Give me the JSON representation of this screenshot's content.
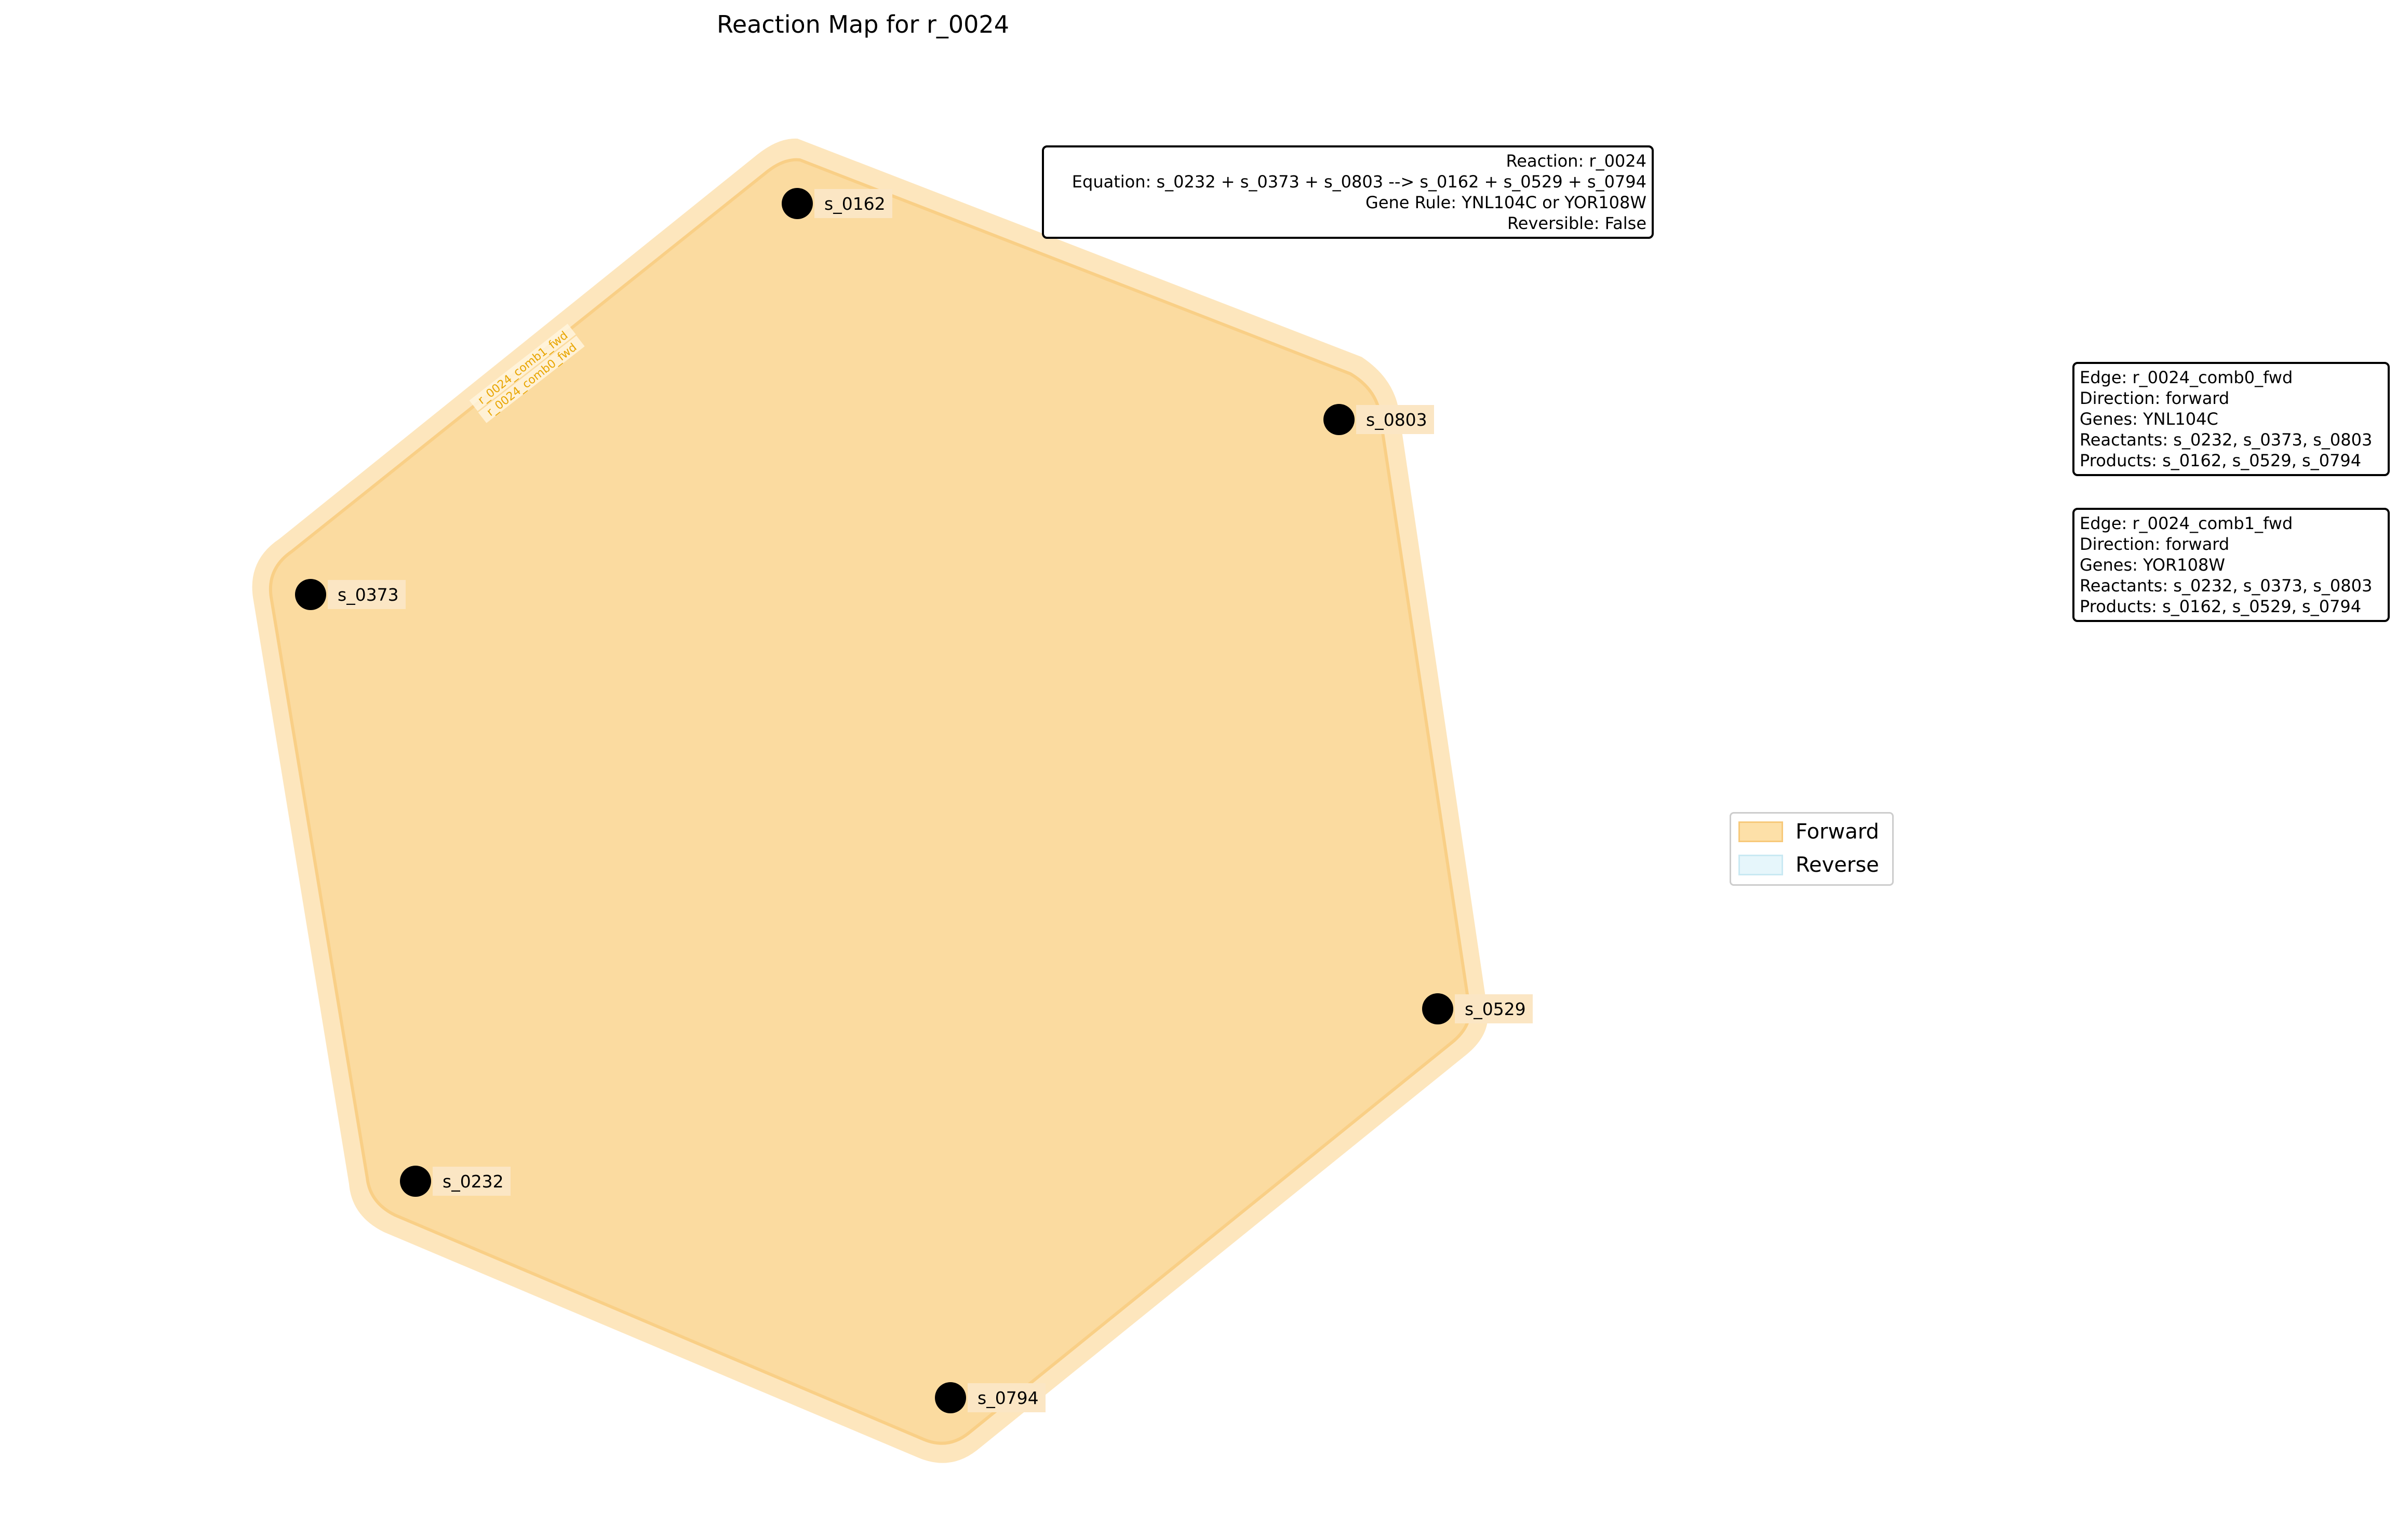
{
  "title": "Reaction Map for r_0024",
  "reaction_info": {
    "lines": [
      "Reaction: r_0024",
      "Equation: s_0232 + s_0373 + s_0803 --> s_0162 + s_0529 + s_0794",
      "Gene Rule: YNL104C or YOR108W",
      "Reversible: False"
    ]
  },
  "edges": [
    {
      "lines": [
        "Edge: r_0024_comb0_fwd",
        "Direction: forward",
        "Genes: YNL104C",
        "Reactants: s_0232, s_0373, s_0803",
        "Products: s_0162, s_0529, s_0794"
      ]
    },
    {
      "lines": [
        "Edge: r_0024_comb1_fwd",
        "Direction: forward",
        "Genes: YOR108W",
        "Reactants: s_0232, s_0373, s_0803",
        "Products: s_0162, s_0529, s_0794"
      ]
    }
  ],
  "hyperedge_labels": [
    "r_0024_comb1_fwd",
    "r_0024_comb0_fwd"
  ],
  "nodes": [
    {
      "id": "s_0162"
    },
    {
      "id": "s_0803"
    },
    {
      "id": "s_0373"
    },
    {
      "id": "s_0529"
    },
    {
      "id": "s_0232"
    },
    {
      "id": "s_0794"
    }
  ],
  "legend": [
    {
      "label": "Forward",
      "color": "#fde0a8",
      "edge_color": "#f7c97a"
    },
    {
      "label": "Reverse",
      "color": "#e6f6fb",
      "edge_color": "#c9e9f3"
    }
  ],
  "colors": {
    "forward_fill": "#fbdba0",
    "forward_halo": "#fde9c7",
    "node": "#000000",
    "label_bg": "#fbe6c4",
    "edge_label": "#e8a500"
  }
}
